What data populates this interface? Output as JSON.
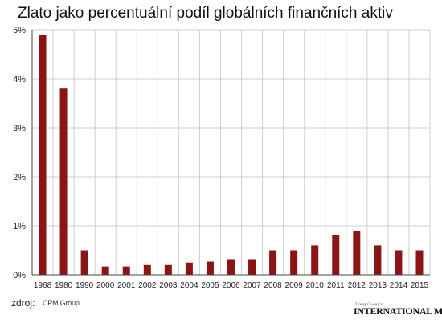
{
  "title": "Zlato jako percentuální podíl globálních finančních aktiv",
  "source": {
    "label": "zdroj:",
    "value": "CPM Group"
  },
  "logo": {
    "small": "Doug Casey's",
    "main": "INTERNATIONAL MAN"
  },
  "colors": {
    "bar": "#8b1414",
    "grid": "#cfcfcf",
    "axis": "#444444",
    "text": "#222222"
  },
  "chart_data": {
    "type": "bar",
    "title": "Zlato jako percentuální podíl globálních finančních aktiv",
    "xlabel": "",
    "ylabel": "",
    "ylim": [
      0,
      5
    ],
    "yticks": [
      "0%",
      "1%",
      "2%",
      "3%",
      "4%",
      "5%"
    ],
    "grid": true,
    "categories": [
      "1968",
      "1980",
      "1990",
      "2000",
      "2001",
      "2002",
      "2003",
      "2004",
      "2005",
      "2006",
      "2007",
      "2008",
      "2009",
      "2010",
      "2011",
      "2012",
      "2013",
      "2014",
      "2015"
    ],
    "values": [
      4.9,
      3.8,
      0.5,
      0.17,
      0.17,
      0.2,
      0.2,
      0.25,
      0.27,
      0.32,
      0.32,
      0.5,
      0.5,
      0.6,
      0.82,
      0.9,
      0.6,
      0.5,
      0.5
    ]
  }
}
